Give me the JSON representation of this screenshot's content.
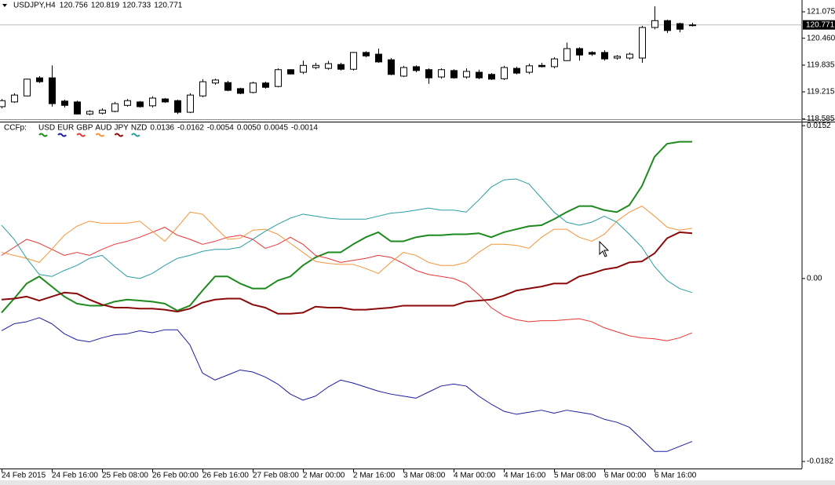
{
  "chart_data": [
    {
      "type": "candlestick",
      "title": "USDJPY,H4",
      "categories": [
        "24 Feb 2015",
        null,
        null,
        null,
        "24 Feb 16:00",
        null,
        null,
        null,
        "25 Feb 08:00",
        null,
        null,
        null,
        "26 Feb 00:00",
        null,
        null,
        null,
        "26 Feb 16:00",
        null,
        null,
        null,
        "27 Feb 08:00",
        null,
        null,
        null,
        "2 Mar 00:00",
        null,
        null,
        null,
        "2 Mar 16:00",
        null,
        null,
        null,
        "3 Mar 08:00",
        null,
        null,
        null,
        "4 Mar 00:00",
        null,
        null,
        null,
        "4 Mar 16:00",
        null,
        null,
        null,
        "5 Mar 08:00",
        null,
        null,
        null,
        "6 Mar 00:00",
        null,
        null,
        null,
        "6 Mar 16:00",
        null,
        null,
        null
      ],
      "open": [
        118.87,
        118.98,
        119.12,
        119.54,
        119.54,
        119.0,
        118.98,
        118.7,
        118.72,
        118.76,
        118.9,
        118.98,
        118.89,
        119.05,
        119.01,
        118.74,
        119.12,
        119.42,
        119.43,
        119.29,
        119.2,
        119.42,
        119.34,
        119.73,
        119.67,
        119.78,
        119.76,
        119.85,
        119.74,
        120.13,
        120.09,
        119.96,
        119.58,
        119.8,
        119.73,
        119.56,
        119.71,
        119.56,
        119.67,
        119.62,
        119.52,
        119.76,
        119.67,
        119.83,
        119.8,
        119.94,
        120.22,
        120.13,
        120.13,
        120.0,
        120.0,
        120.0,
        120.71,
        120.87,
        120.8,
        120.756
      ],
      "high": [
        119.05,
        119.18,
        119.52,
        119.58,
        119.83,
        119.03,
        119.01,
        118.79,
        118.83,
        118.98,
        119.05,
        119.0,
        119.11,
        119.07,
        119.03,
        119.18,
        119.51,
        119.52,
        119.47,
        119.31,
        119.45,
        119.45,
        119.76,
        119.74,
        119.94,
        119.89,
        119.93,
        119.89,
        120.14,
        120.16,
        120.22,
        120.0,
        119.82,
        119.83,
        119.76,
        119.76,
        119.74,
        119.76,
        119.73,
        119.65,
        119.82,
        119.8,
        119.87,
        119.89,
        120.02,
        120.36,
        120.25,
        120.16,
        120.18,
        120.07,
        120.13,
        120.75,
        121.2,
        120.89,
        120.82,
        120.819
      ],
      "low": [
        118.83,
        118.96,
        119.11,
        119.42,
        118.87,
        118.85,
        118.69,
        118.67,
        118.69,
        118.74,
        118.87,
        118.85,
        118.85,
        118.96,
        118.7,
        118.72,
        119.09,
        119.38,
        119.23,
        119.16,
        119.18,
        119.29,
        119.32,
        119.62,
        119.63,
        119.74,
        119.73,
        119.71,
        119.71,
        120.02,
        119.89,
        119.6,
        119.56,
        119.67,
        119.4,
        119.52,
        119.52,
        119.52,
        119.51,
        119.49,
        119.49,
        119.62,
        119.63,
        119.78,
        119.76,
        119.93,
        119.94,
        120.05,
        119.94,
        119.96,
        119.96,
        119.89,
        120.67,
        120.58,
        120.6,
        120.733
      ],
      "close": [
        119.01,
        119.14,
        119.51,
        119.45,
        118.94,
        118.9,
        118.7,
        118.76,
        118.79,
        118.94,
        119.01,
        118.87,
        119.07,
        118.98,
        118.74,
        119.14,
        119.45,
        119.49,
        119.25,
        119.18,
        119.42,
        119.32,
        119.73,
        119.63,
        119.83,
        119.83,
        119.87,
        119.74,
        120.13,
        120.05,
        119.91,
        119.62,
        119.78,
        119.71,
        119.54,
        119.73,
        119.54,
        119.69,
        119.54,
        119.51,
        119.78,
        119.65,
        119.82,
        119.8,
        119.98,
        120.22,
        120.07,
        120.09,
        119.98,
        120.04,
        120.09,
        120.71,
        120.87,
        120.64,
        120.67,
        120.771
      ],
      "up_color": "#ffffff",
      "down_color": "#000000",
      "ylim": [
        118.577,
        121.349
      ],
      "yticks": [
        121.075,
        {
          "value": 120.46,
          "label": "120.460"
        },
        119.835,
        119.215,
        118.585
      ]
    },
    {
      "type": "line",
      "title": "CCFp:",
      "series": [
        {
          "name": "USD",
          "color": "#1e8a1e",
          "width": 2,
          "legend_value": "0.0136",
          "values": [
            -0.0034,
            -0.002,
            -0.0005,
            0.0002,
            -0.0008,
            -0.0018,
            -0.0025,
            -0.0027,
            -0.0027,
            -0.0023,
            -0.0021,
            -0.0022,
            -0.0023,
            -0.0025,
            -0.0032,
            -0.0027,
            -0.0012,
            0.0002,
            0.0002,
            -0.0005,
            -0.001,
            -0.001,
            -0.0002,
            0.0002,
            0.0013,
            0.0021,
            0.0026,
            0.0026,
            0.0034,
            0.0041,
            0.0046,
            0.0037,
            0.0037,
            0.0041,
            0.0043,
            0.0043,
            0.0044,
            0.0044,
            0.0045,
            0.0041,
            0.0046,
            0.0049,
            0.0052,
            0.0053,
            0.0059,
            0.0066,
            0.0072,
            0.0072,
            0.0068,
            0.0066,
            0.0073,
            0.0092,
            0.0121,
            0.0134,
            0.0136,
            0.0136
          ]
        },
        {
          "name": "EUR",
          "color": "#1c1ca0",
          "width": 1,
          "legend_value": "-0.0162",
          "values": [
            -0.0052,
            -0.0045,
            -0.0043,
            -0.0039,
            -0.0045,
            -0.0055,
            -0.0061,
            -0.0063,
            -0.0059,
            -0.0056,
            -0.0055,
            -0.0052,
            -0.0054,
            -0.0051,
            -0.0051,
            -0.0066,
            -0.0094,
            -0.0101,
            -0.0096,
            -0.0091,
            -0.0093,
            -0.0098,
            -0.0105,
            -0.0115,
            -0.0121,
            -0.0117,
            -0.0108,
            -0.0101,
            -0.0104,
            -0.0108,
            -0.0112,
            -0.0115,
            -0.0117,
            -0.0119,
            -0.0113,
            -0.0107,
            -0.0105,
            -0.0107,
            -0.0117,
            -0.0125,
            -0.0132,
            -0.0135,
            -0.0133,
            -0.0131,
            -0.0134,
            -0.0131,
            -0.0133,
            -0.0135,
            -0.014,
            -0.0143,
            -0.0148,
            -0.016,
            -0.0172,
            -0.0172,
            -0.0167,
            -0.0162
          ]
        },
        {
          "name": "GBP",
          "color": "#e83535",
          "width": 1,
          "legend_value": "-0.0054",
          "values": [
            0.0023,
            0.0031,
            0.0039,
            0.0035,
            0.0029,
            0.0023,
            0.0026,
            0.0023,
            0.0029,
            0.0034,
            0.0037,
            0.0041,
            0.0046,
            0.0051,
            0.0043,
            0.0039,
            0.0034,
            0.0037,
            0.0041,
            0.0043,
            0.0039,
            0.003,
            0.0034,
            0.0041,
            0.0034,
            0.0023,
            0.002,
            0.0016,
            0.0018,
            0.002,
            0.0023,
            0.0021,
            0.0015,
            0.0008,
            0.0004,
            0.0002,
            0,
            -0.0005,
            -0.0016,
            -0.0029,
            -0.0037,
            -0.0041,
            -0.0043,
            -0.0042,
            -0.0042,
            -0.0041,
            -0.004,
            -0.0043,
            -0.0049,
            -0.0053,
            -0.0057,
            -0.0059,
            -0.006,
            -0.0062,
            -0.0059,
            -0.0054
          ]
        },
        {
          "name": "AUD",
          "color": "#f5953a",
          "width": 1,
          "legend_value": "0.0050",
          "values": [
            0.0026,
            0.0023,
            0.002,
            0.0016,
            0.0029,
            0.0043,
            0.0052,
            0.0057,
            0.0055,
            0.0055,
            0.0055,
            0.0057,
            0.0047,
            0.0037,
            0.0051,
            0.0066,
            0.0064,
            0.0051,
            0.0039,
            0.004,
            0.0048,
            0.0049,
            0.0044,
            0.0035,
            0.0026,
            0.0017,
            0.0015,
            0.0014,
            0.0014,
            0.001,
            0.0005,
            0.0016,
            0.0026,
            0.0023,
            0.0016,
            0.0013,
            0.0013,
            0.0016,
            0.0026,
            0.0034,
            0.0034,
            0.0033,
            0.003,
            0.0041,
            0.0049,
            0.0049,
            0.0041,
            0.0037,
            0.0044,
            0.0057,
            0.0066,
            0.0072,
            0.0062,
            0.0051,
            0.0048,
            0.005
          ]
        },
        {
          "name": "JPY",
          "color": "#8b0a0a",
          "width": 2,
          "legend_value": "0.0045",
          "values": [
            -0.0021,
            -0.002,
            -0.0018,
            -0.0022,
            -0.0018,
            -0.0014,
            -0.0015,
            -0.0021,
            -0.0026,
            -0.0029,
            -0.0029,
            -0.003,
            -0.003,
            -0.0031,
            -0.0033,
            -0.003,
            -0.0024,
            -0.0021,
            -0.002,
            -0.002,
            -0.0026,
            -0.0029,
            -0.0035,
            -0.0035,
            -0.0034,
            -0.0028,
            -0.0029,
            -0.0029,
            -0.0031,
            -0.0031,
            -0.003,
            -0.0029,
            -0.0027,
            -0.0027,
            -0.0027,
            -0.0027,
            -0.0027,
            -0.0023,
            -0.0022,
            -0.0021,
            -0.0017,
            -0.0012,
            -0.001,
            -0.0008,
            -0.0005,
            -0.0005,
            0.0002,
            0.0005,
            0.0009,
            0.0011,
            0.0016,
            0.0017,
            0.0025,
            0.004,
            0.0046,
            0.0045
          ]
        },
        {
          "name": "NZD",
          "color": "#2a9da0",
          "width": 1,
          "legend_value": "-0.0014",
          "values": [
            0.0053,
            0.0039,
            0.002,
            0.0004,
            0.0002,
            0.0008,
            0.0013,
            0.002,
            0.0023,
            0.0012,
            0.0002,
            0.0,
            0.0005,
            0.0013,
            0.002,
            0.0023,
            0.0027,
            0.0029,
            0.0029,
            0.0031,
            0.0039,
            0.0047,
            0.0054,
            0.006,
            0.0064,
            0.0062,
            0.006,
            0.0059,
            0.0059,
            0.0059,
            0.0062,
            0.0065,
            0.0066,
            0.0068,
            0.007,
            0.0068,
            0.0068,
            0.0066,
            0.0078,
            0.0091,
            0.0098,
            0.0099,
            0.0094,
            0.008,
            0.0066,
            0.0056,
            0.0053,
            0.0056,
            0.0062,
            0.0056,
            0.0044,
            0.0031,
            0.0012,
            -0.0002,
            -0.001,
            -0.0014
          ]
        }
      ],
      "ylim": [
        -0.0189,
        0.0156
      ],
      "yticks": [
        0.0152,
        {
          "value": 0,
          "label": "0.00"
        },
        -0.0182
      ]
    }
  ]
}
